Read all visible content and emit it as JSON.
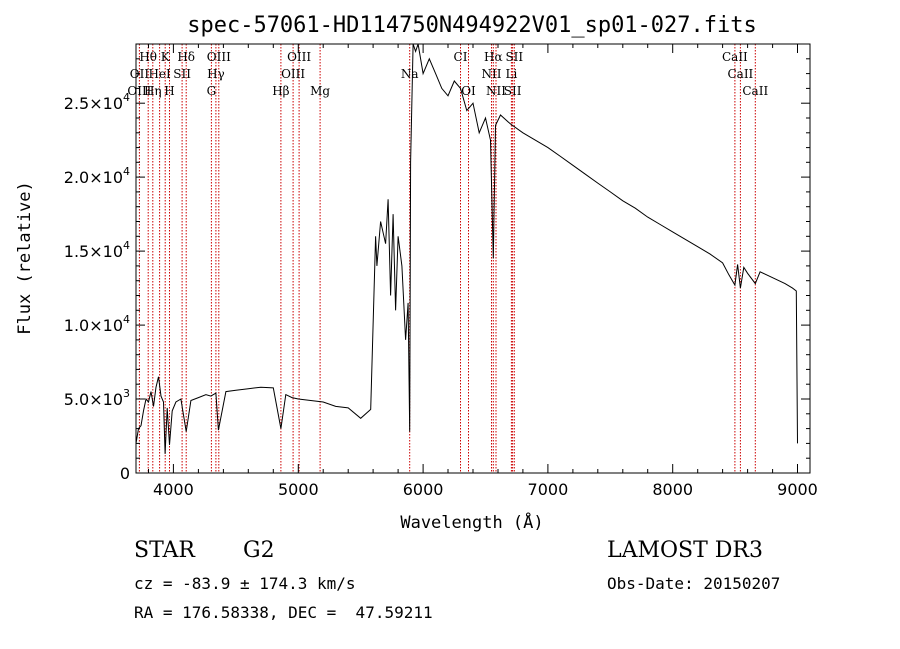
{
  "chart_data": {
    "type": "line",
    "title": "spec-57061-HD114750N494922V01_sp01-027.fits",
    "xlabel": "Wavelength (Å)",
    "ylabel": "Flux (relative)",
    "xlim": [
      3700,
      9100
    ],
    "ylim": [
      0,
      29000
    ],
    "x_ticks": [
      4000,
      5000,
      6000,
      7000,
      8000,
      9000
    ],
    "x_tick_labels": [
      "4000",
      "5000",
      "6000",
      "7000",
      "8000",
      "9000"
    ],
    "y_ticks": [
      0,
      5000,
      10000,
      15000,
      20000,
      25000
    ],
    "y_tick_labels": [
      {
        "mant": "0",
        "exp": ""
      },
      {
        "mant": "5.0×10",
        "exp": "3"
      },
      {
        "mant": "1.0×10",
        "exp": "4"
      },
      {
        "mant": "1.5×10",
        "exp": "4"
      },
      {
        "mant": "2.0×10",
        "exp": "4"
      },
      {
        "mant": "2.5×10",
        "exp": "4"
      }
    ],
    "series": [
      {
        "color": "#000000",
        "x": [
          3700,
          3720,
          3740,
          3760,
          3780,
          3800,
          3820,
          3840,
          3860,
          3880,
          3900,
          3920,
          3933,
          3950,
          3968,
          3990,
          4020,
          4060,
          4102,
          4140,
          4200,
          4260,
          4300,
          4340,
          4360,
          4420,
          4500,
          4600,
          4700,
          4800,
          4861,
          4900,
          4950,
          5000,
          5100,
          5200,
          5300,
          5400,
          5500,
          5580,
          5620,
          5630,
          5660,
          5700,
          5720,
          5740,
          5760,
          5780,
          5800,
          5830,
          5860,
          5880,
          5893,
          5900,
          5920,
          5940,
          5960,
          6000,
          6050,
          6100,
          6150,
          6200,
          6250,
          6300,
          6350,
          6400,
          6450,
          6500,
          6540,
          6563,
          6580,
          6620,
          6700,
          6800,
          6900,
          7000,
          7100,
          7200,
          7300,
          7400,
          7500,
          7600,
          7700,
          7800,
          7900,
          8000,
          8100,
          8200,
          8300,
          8400,
          8450,
          8498,
          8520,
          8542,
          8570,
          8600,
          8662,
          8700,
          8800,
          8900,
          8960,
          8990,
          9000
        ],
        "y": [
          2000,
          3000,
          3200,
          4200,
          5000,
          4800,
          5500,
          4500,
          5800,
          6500,
          5200,
          4800,
          1300,
          4400,
          1900,
          4200,
          4800,
          5000,
          2800,
          4900,
          5100,
          5300,
          5200,
          5400,
          2900,
          5500,
          5600,
          5700,
          5800,
          5750,
          3000,
          5300,
          5100,
          5000,
          4900,
          4800,
          4500,
          4400,
          3700,
          4300,
          16000,
          14000,
          17000,
          15500,
          18500,
          12000,
          17500,
          11000,
          16000,
          14000,
          9000,
          11500,
          2800,
          21000,
          29000,
          28500,
          29000,
          27000,
          28000,
          27000,
          26000,
          25500,
          26500,
          26000,
          24500,
          25000,
          23000,
          24000,
          22500,
          14500,
          23500,
          24200,
          23600,
          23000,
          22500,
          22000,
          21400,
          20800,
          20200,
          19600,
          19000,
          18400,
          17900,
          17300,
          16800,
          16300,
          15800,
          15300,
          14800,
          14200,
          13400,
          12700,
          14100,
          12500,
          13900,
          13500,
          12800,
          13600,
          13200,
          12800,
          12500,
          12300,
          2000
        ]
      }
    ],
    "line_labels": [
      {
        "text": "Hθ",
        "wl": 3798,
        "row": 1
      },
      {
        "text": "K",
        "wl": 3934,
        "row": 1
      },
      {
        "text": "Hδ",
        "wl": 4102,
        "row": 1
      },
      {
        "text": "OIII",
        "wl": 4363,
        "row": 1
      },
      {
        "text": "OIII",
        "wl": 5007,
        "row": 1
      },
      {
        "text": "CI",
        "wl": 6300,
        "row": 1
      },
      {
        "text": "Hα",
        "wl": 6563,
        "row": 1
      },
      {
        "text": "SII",
        "wl": 6731,
        "row": 1
      },
      {
        "text": "CaII",
        "wl": 8498,
        "row": 1
      },
      {
        "text": "OII",
        "wl": 3727,
        "row": 2
      },
      {
        "text": "HeI",
        "wl": 3889,
        "row": 2
      },
      {
        "text": "SII",
        "wl": 4069,
        "row": 2
      },
      {
        "text": "Hγ",
        "wl": 4340,
        "row": 2
      },
      {
        "text": "OIII",
        "wl": 4959,
        "row": 2
      },
      {
        "text": "Na",
        "wl": 5893,
        "row": 2
      },
      {
        "text": "NII",
        "wl": 6548,
        "row": 2
      },
      {
        "text": "Li",
        "wl": 6708,
        "row": 2
      },
      {
        "text": "CaII",
        "wl": 8542,
        "row": 2
      },
      {
        "text": "OIII",
        "wl": 3727,
        "row": 3
      },
      {
        "text": "Hη",
        "wl": 3835,
        "row": 3
      },
      {
        "text": "H",
        "wl": 3968,
        "row": 3
      },
      {
        "text": "G",
        "wl": 4304,
        "row": 3
      },
      {
        "text": "Hβ",
        "wl": 4861,
        "row": 3
      },
      {
        "text": "Mg",
        "wl": 5175,
        "row": 3
      },
      {
        "text": "OI",
        "wl": 6364,
        "row": 3
      },
      {
        "text": "NII",
        "wl": 6584,
        "row": 3
      },
      {
        "text": "SII",
        "wl": 6717,
        "row": 3
      },
      {
        "text": "CaII",
        "wl": 8662,
        "row": 3
      }
    ],
    "marker_lines": [
      3727,
      3798,
      3835,
      3889,
      3934,
      3968,
      4069,
      4102,
      4304,
      4340,
      4363,
      4861,
      4959,
      5007,
      5175,
      5893,
      6300,
      6364,
      6548,
      6563,
      6584,
      6708,
      6717,
      6731,
      8498,
      8542,
      8662
    ],
    "marker_color": "#cc0000"
  },
  "info": {
    "object_class": "STAR",
    "subclass": "G2",
    "survey": "LAMOST DR3",
    "cz": "cz = -83.9 ± 174.3 km/s",
    "obs_date": "Obs-Date: 20150207",
    "coords": "RA = 176.58338, DEC =  47.59211"
  }
}
